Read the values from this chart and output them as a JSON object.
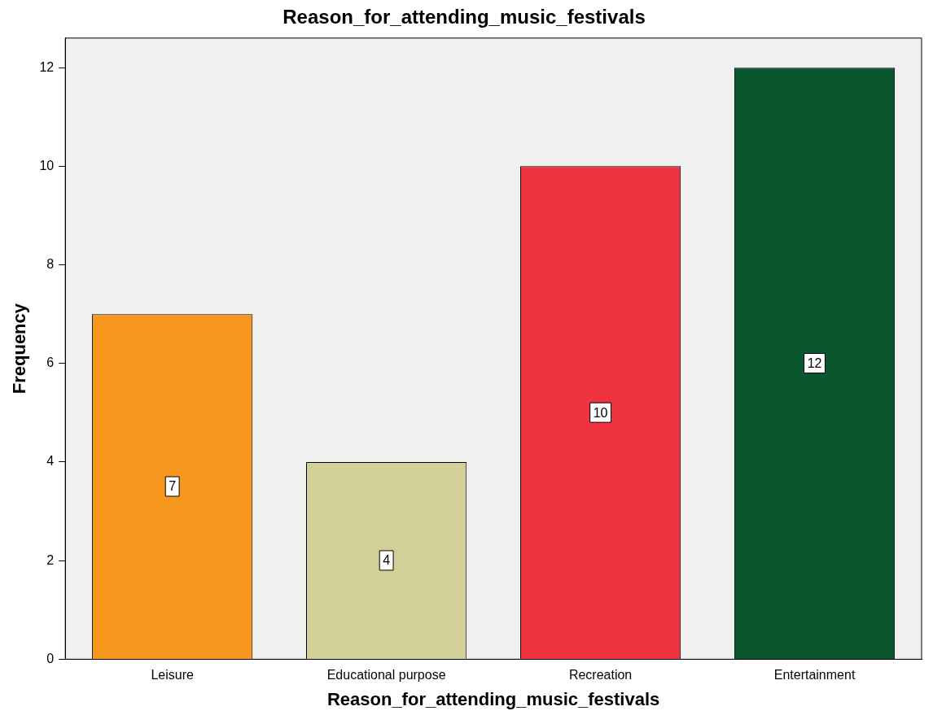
{
  "chart_data": {
    "type": "bar",
    "title": "Reason_for_attending_music_festivals",
    "xlabel": "Reason_for_attending_music_festivals",
    "ylabel": "Frequency",
    "categories": [
      "Leisure",
      "Educational purpose",
      "Recreation",
      "Entertainment"
    ],
    "values": [
      7,
      4,
      10,
      12
    ],
    "colors": [
      "#f7971e",
      "#d3cf98",
      "#ef3340",
      "#0b572d"
    ],
    "ylim": [
      0,
      12.6
    ],
    "yticks": [
      0,
      2,
      4,
      6,
      8,
      10,
      12
    ],
    "grid": false,
    "data_labels": true,
    "legend": false
  }
}
